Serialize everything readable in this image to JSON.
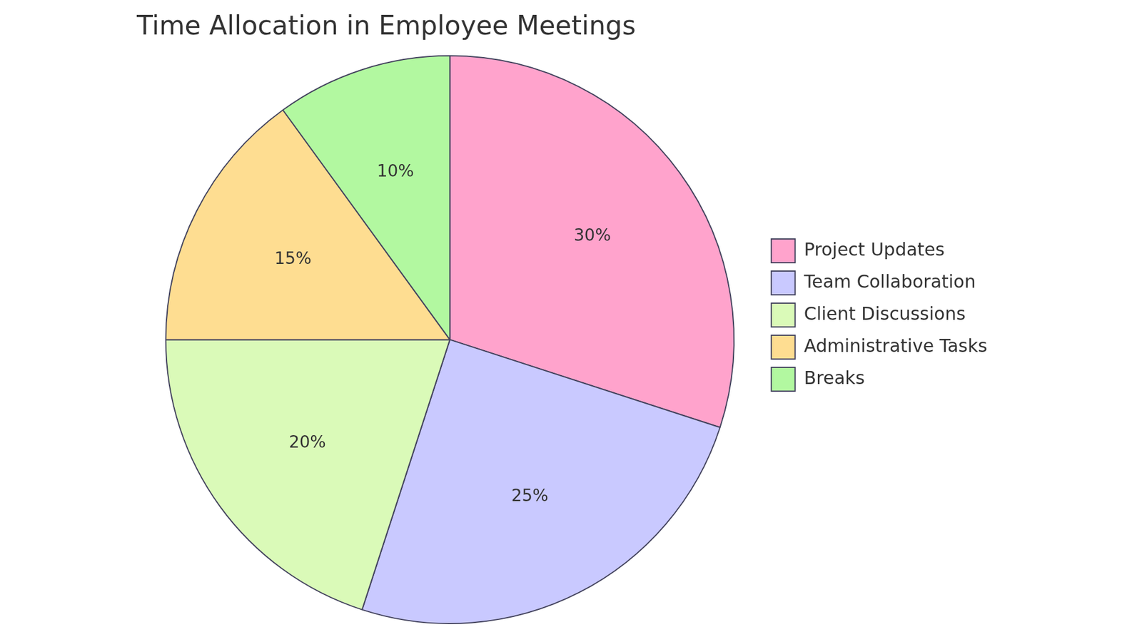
{
  "chart_data": {
    "type": "pie",
    "title": "Time Allocation in Employee Meetings",
    "categories": [
      "Project Updates",
      "Team Collaboration",
      "Client Discussions",
      "Administrative Tasks",
      "Breaks"
    ],
    "values": [
      30,
      25,
      20,
      15,
      10
    ],
    "value_labels": [
      "30%",
      "25%",
      "20%",
      "15%",
      "10%"
    ],
    "colors": [
      "#ffa3cc",
      "#c9c9ff",
      "#dafab8",
      "#fedd91",
      "#b2f8a0"
    ],
    "legend": "right",
    "data_labels": true
  }
}
